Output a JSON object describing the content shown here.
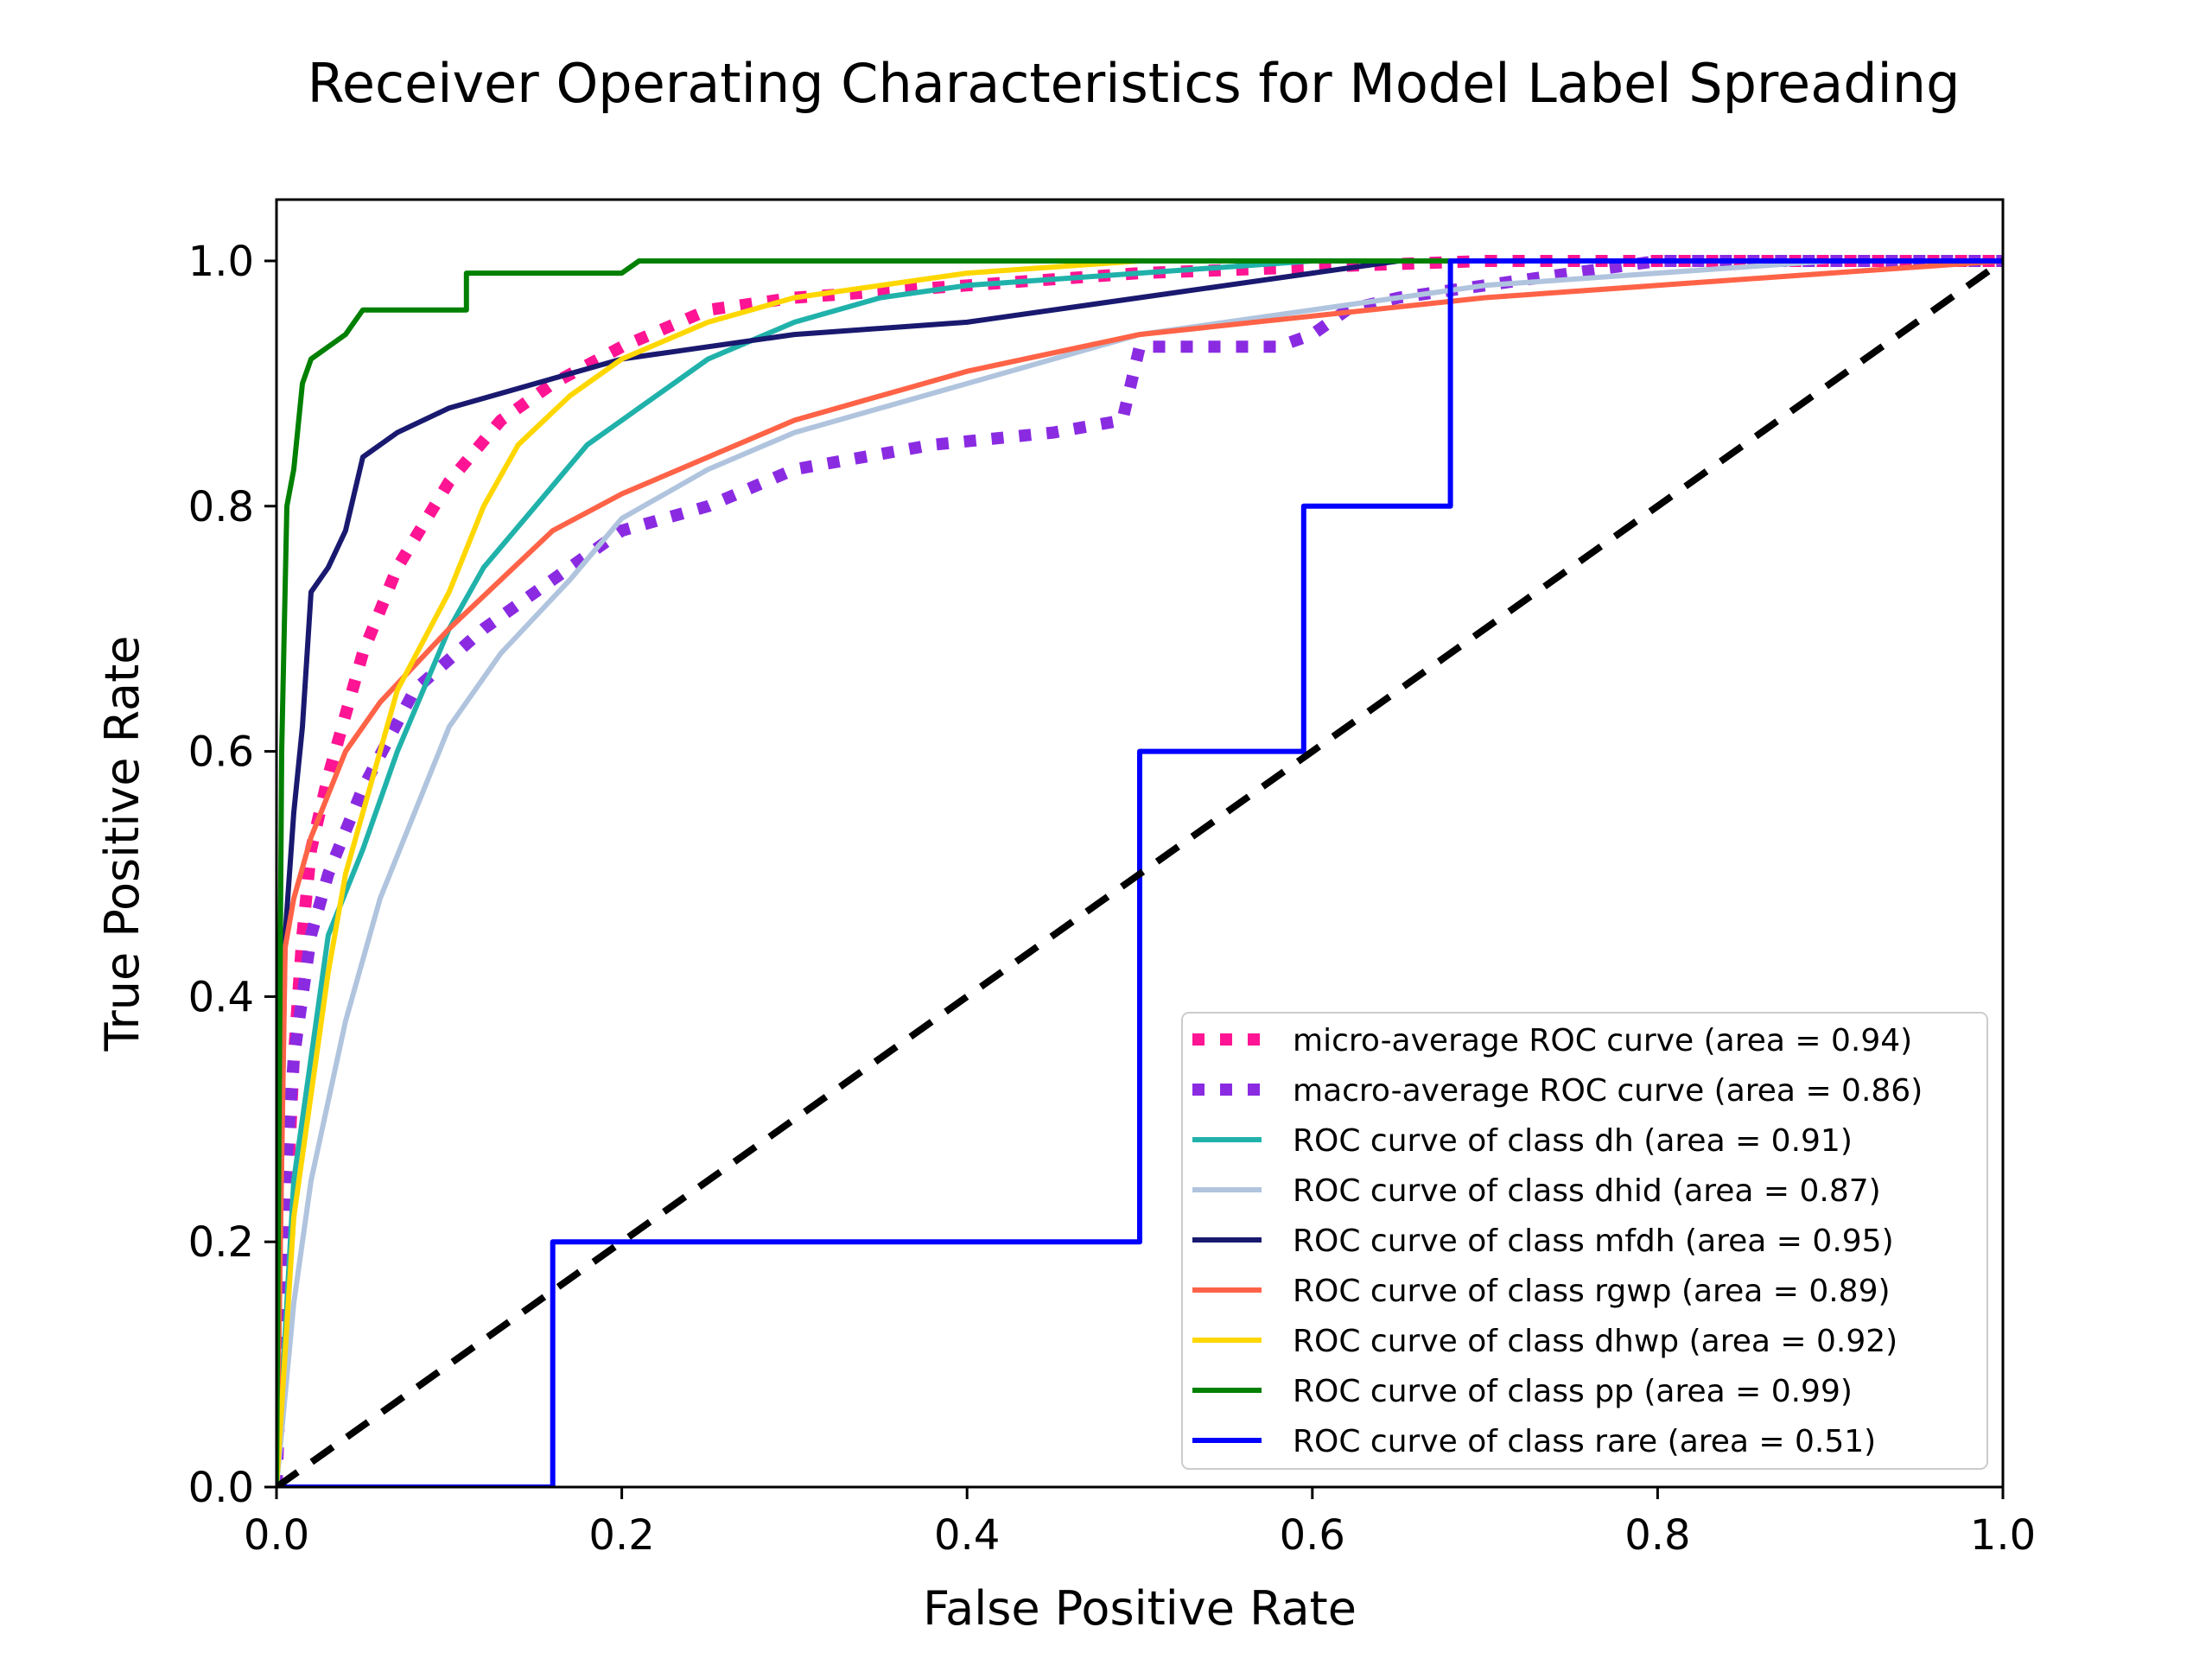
{
  "chart_data": {
    "type": "line",
    "title": "Receiver Operating Characteristics for Model Label Spreading",
    "xlabel": "False Positive Rate",
    "ylabel": "True Positive Rate",
    "xlim": [
      0.0,
      1.0
    ],
    "ylim": [
      0.0,
      1.05
    ],
    "xticks": [
      "0.0",
      "0.2",
      "0.4",
      "0.6",
      "0.8",
      "1.0"
    ],
    "yticks": [
      "0.0",
      "0.2",
      "0.4",
      "0.6",
      "0.8",
      "1.0"
    ],
    "grid": false,
    "legend_position": "lower-right",
    "series": [
      {
        "name": "micro-average ROC curve (area = 0.94)",
        "color": "#ff1493",
        "style": "dotted",
        "x": [
          0.0,
          0.005,
          0.01,
          0.015,
          0.02,
          0.03,
          0.04,
          0.05,
          0.07,
          0.1,
          0.13,
          0.16,
          0.2,
          0.25,
          0.3,
          0.4,
          0.5,
          0.6,
          0.7,
          0.8,
          0.9,
          1.0
        ],
        "y": [
          0.0,
          0.2,
          0.35,
          0.45,
          0.52,
          0.58,
          0.63,
          0.68,
          0.75,
          0.82,
          0.87,
          0.9,
          0.93,
          0.96,
          0.97,
          0.98,
          0.99,
          0.995,
          1.0,
          1.0,
          1.0,
          1.0
        ]
      },
      {
        "name": "macro-average ROC curve (area = 0.86)",
        "color": "#8a2be2",
        "style": "dotted",
        "x": [
          0.0,
          0.005,
          0.01,
          0.02,
          0.03,
          0.05,
          0.08,
          0.12,
          0.16,
          0.2,
          0.25,
          0.3,
          0.38,
          0.45,
          0.49,
          0.5,
          0.55,
          0.58,
          0.6,
          0.62,
          0.65,
          0.7,
          0.8,
          0.9,
          1.0
        ],
        "y": [
          0.0,
          0.25,
          0.35,
          0.45,
          0.5,
          0.57,
          0.65,
          0.7,
          0.74,
          0.78,
          0.8,
          0.83,
          0.85,
          0.86,
          0.87,
          0.93,
          0.93,
          0.93,
          0.94,
          0.96,
          0.97,
          0.98,
          1.0,
          1.0,
          1.0
        ]
      },
      {
        "name": "ROC curve of class dh (area = 0.91)",
        "color": "#20b2aa",
        "style": "solid",
        "x": [
          0.0,
          0.01,
          0.02,
          0.03,
          0.05,
          0.07,
          0.1,
          0.12,
          0.15,
          0.18,
          0.2,
          0.25,
          0.3,
          0.35,
          0.4,
          0.5,
          0.6,
          0.7,
          0.8,
          1.0
        ],
        "y": [
          0.0,
          0.25,
          0.35,
          0.45,
          0.52,
          0.6,
          0.7,
          0.75,
          0.8,
          0.85,
          0.87,
          0.92,
          0.95,
          0.97,
          0.98,
          0.99,
          1.0,
          1.0,
          1.0,
          1.0
        ]
      },
      {
        "name": "ROC curve of class dhid (area = 0.87)",
        "color": "#b0c4de",
        "style": "solid",
        "x": [
          0.0,
          0.01,
          0.02,
          0.04,
          0.06,
          0.08,
          0.1,
          0.13,
          0.17,
          0.2,
          0.25,
          0.3,
          0.35,
          0.4,
          0.45,
          0.5,
          0.55,
          0.6,
          0.7,
          0.8,
          0.9,
          1.0
        ],
        "y": [
          0.0,
          0.15,
          0.25,
          0.38,
          0.48,
          0.55,
          0.62,
          0.68,
          0.74,
          0.79,
          0.83,
          0.86,
          0.88,
          0.9,
          0.92,
          0.94,
          0.95,
          0.96,
          0.98,
          0.99,
          1.0,
          1.0
        ]
      },
      {
        "name": "ROC curve of class mfdh (area = 0.95)",
        "color": "#191970",
        "style": "solid",
        "x": [
          0.0,
          0.005,
          0.01,
          0.015,
          0.02,
          0.03,
          0.04,
          0.05,
          0.07,
          0.1,
          0.15,
          0.2,
          0.3,
          0.4,
          0.5,
          0.55,
          0.6,
          0.65,
          1.0
        ],
        "y": [
          0.0,
          0.45,
          0.55,
          0.62,
          0.73,
          0.75,
          0.78,
          0.84,
          0.86,
          0.88,
          0.9,
          0.92,
          0.94,
          0.95,
          0.97,
          0.98,
          0.99,
          1.0,
          1.0
        ]
      },
      {
        "name": "ROC curve of class rgwp (area = 0.89)",
        "color": "#ff6347",
        "style": "solid",
        "x": [
          0.0,
          0.005,
          0.01,
          0.02,
          0.04,
          0.06,
          0.08,
          0.1,
          0.13,
          0.16,
          0.2,
          0.25,
          0.3,
          0.35,
          0.4,
          0.5,
          0.6,
          0.7,
          0.8,
          0.9,
          1.0
        ],
        "y": [
          0.0,
          0.44,
          0.48,
          0.53,
          0.6,
          0.64,
          0.67,
          0.7,
          0.74,
          0.78,
          0.81,
          0.84,
          0.87,
          0.89,
          0.91,
          0.94,
          0.955,
          0.97,
          0.98,
          0.99,
          1.0
        ]
      },
      {
        "name": "ROC curve of class dhwp (area = 0.92)",
        "color": "#ffd700",
        "style": "solid",
        "x": [
          0.0,
          0.01,
          0.02,
          0.03,
          0.04,
          0.05,
          0.07,
          0.1,
          0.12,
          0.14,
          0.17,
          0.2,
          0.25,
          0.3,
          0.4,
          0.5,
          0.6,
          1.0
        ],
        "y": [
          0.0,
          0.22,
          0.32,
          0.42,
          0.5,
          0.55,
          0.65,
          0.73,
          0.8,
          0.85,
          0.89,
          0.92,
          0.95,
          0.97,
          0.99,
          1.0,
          1.0,
          1.0
        ]
      },
      {
        "name": "ROC curve of class pp (area = 0.99)",
        "color": "#008000",
        "style": "solid",
        "x": [
          0.0,
          0.003,
          0.006,
          0.01,
          0.015,
          0.02,
          0.03,
          0.04,
          0.05,
          0.11,
          0.11,
          0.2,
          0.21,
          1.0
        ],
        "y": [
          0.0,
          0.6,
          0.8,
          0.83,
          0.9,
          0.92,
          0.93,
          0.94,
          0.96,
          0.96,
          0.99,
          0.99,
          1.0,
          1.0
        ]
      },
      {
        "name": "ROC curve of class rare (area = 0.51)",
        "color": "#0000ff",
        "style": "solid",
        "x": [
          0.0,
          0.16,
          0.16,
          0.5,
          0.5,
          0.595,
          0.595,
          0.68,
          0.68,
          1.0
        ],
        "y": [
          0.0,
          0.0,
          0.2,
          0.2,
          0.6,
          0.6,
          0.8,
          0.8,
          1.0,
          1.0
        ]
      }
    ],
    "reference_line": {
      "x": [
        0.0,
        1.0
      ],
      "y": [
        0.0,
        1.0
      ],
      "color": "#000000",
      "style": "dashed"
    }
  }
}
